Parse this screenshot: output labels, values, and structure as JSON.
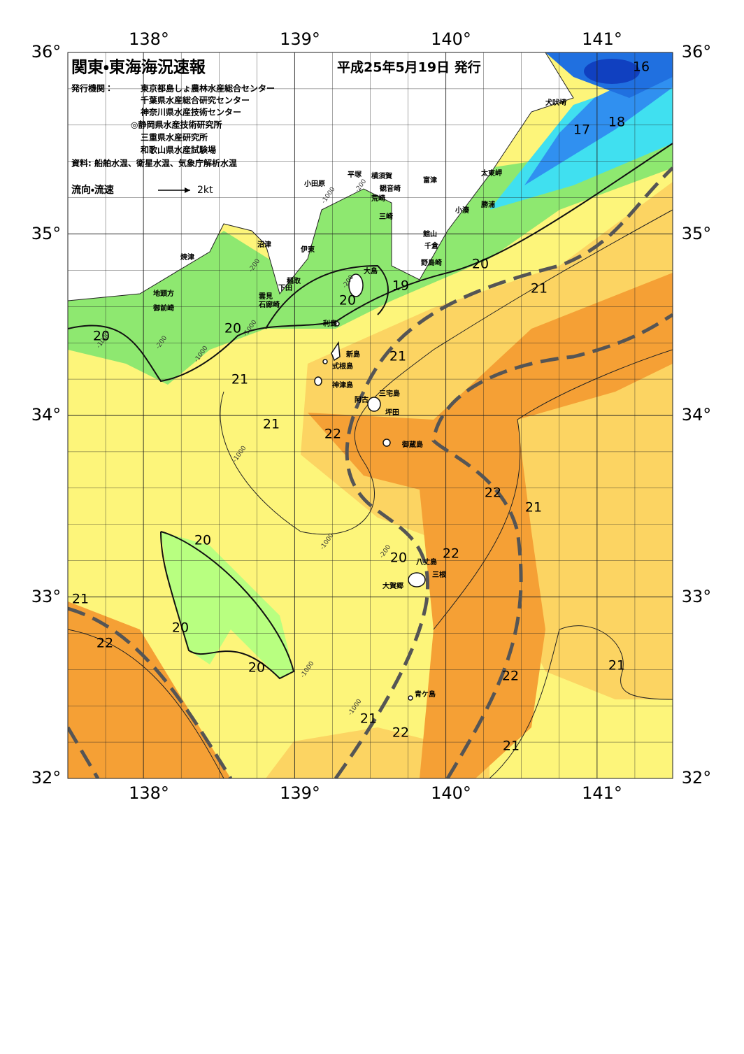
{
  "header": {
    "title": "関東・東海海況速報",
    "issued": "平成25年5月19日 発行"
  },
  "publisher": {
    "label": "発行機関：",
    "orgs": [
      "東京都島しょ農林水産総合センター",
      "千葉県水産総合研究センター",
      "神奈川県水産技術センター",
      "◎静岡県水産技術研究所",
      "三重県水産研究所",
      "和歌山県水産試験場"
    ]
  },
  "source": "資料: 船舶水温、衛星水温、気象庁解析水温",
  "legend": {
    "label": "流向・流速",
    "scale": "2kt"
  },
  "axes": {
    "lon": [
      "138°",
      "139°",
      "140°",
      "141°"
    ],
    "lat": [
      "36°",
      "35°",
      "34°",
      "33°",
      "32°"
    ]
  },
  "places": [
    "犬吠埼",
    "太東岬",
    "勝浦",
    "小湊",
    "富津",
    "館山",
    "千倉",
    "野島崎",
    "横須賀",
    "観音崎",
    "平塚",
    "荒崎",
    "三崎",
    "小田原",
    "沼津",
    "伊東",
    "焼津",
    "稲取",
    "下田",
    "雲見",
    "石廊崎",
    "地頭方",
    "御前崎",
    "大島",
    "利島",
    "新島",
    "式根島",
    "神津島",
    "三宅島",
    "阿古",
    "坪田",
    "御蔵島",
    "八丈島",
    "三根",
    "大賀郷",
    "青ケ島"
  ],
  "isotherms": [
    "16",
    "17",
    "18",
    "19",
    "20",
    "20",
    "20",
    "20",
    "21",
    "21",
    "21",
    "21",
    "22",
    "22",
    "21",
    "20",
    "20",
    "22",
    "21",
    "22",
    "20",
    "20",
    "21",
    "22",
    "21",
    "22",
    "21"
  ],
  "depths": [
    "-200",
    "-1000",
    "-200",
    "-1000",
    "-200",
    "-1000",
    "-1000",
    "-200",
    "-1000",
    "-1000",
    "-200",
    "-1000",
    "-1000"
  ]
}
